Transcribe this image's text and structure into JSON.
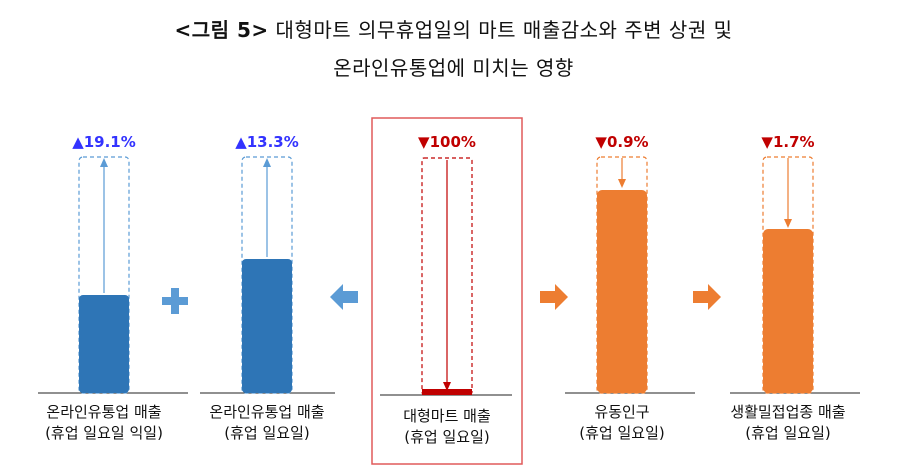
{
  "title": {
    "prefix": "<그림 5>",
    "line1": "대형마트 의무휴업일의 마트 매출감소와 주변 상권 및",
    "line2": "온라인유통업에 미치는 영향"
  },
  "colors": {
    "blue": "#2e75b6",
    "lightblue": "#5b9bd5",
    "red": "#c00000",
    "orange": "#ed7d31",
    "up": "#3333ff"
  },
  "chart_data": {
    "type": "bar",
    "bars": [
      {
        "label_line1": "온라인유통업 매출",
        "label_line2": "(휴업 일요일 익일)",
        "change": "▲19.1%",
        "direction": "up",
        "value": 19.1
      },
      {
        "label_line1": "온라인유통업 매출",
        "label_line2": "(휴업 일요일)",
        "change": "▲13.3%",
        "direction": "up",
        "value": 13.3
      },
      {
        "label_line1": "대형마트 매출",
        "label_line2": "(휴업 일요일)",
        "change": "▼100%",
        "direction": "down",
        "value": -100
      },
      {
        "label_line1": "유동인구",
        "label_line2": "(휴업 일요일)",
        "change": "▼0.9%",
        "direction": "down",
        "value": -0.9
      },
      {
        "label_line1": "생활밀접업종 매출",
        "label_line2": "(휴업 일요일)",
        "change": "▼1.7%",
        "direction": "down",
        "value": -1.7
      }
    ]
  }
}
